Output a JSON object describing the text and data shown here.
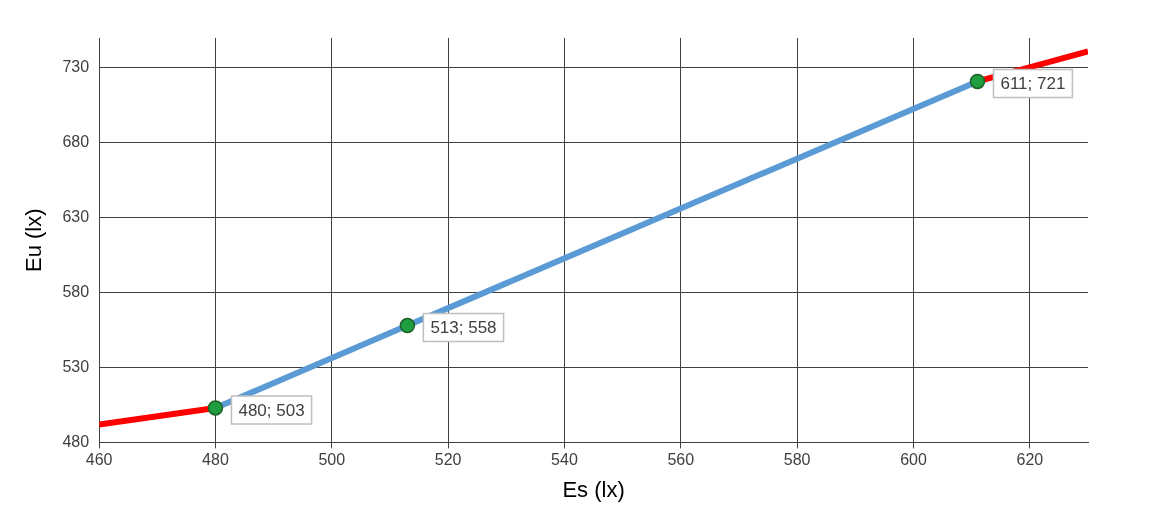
{
  "chart_data": {
    "type": "line",
    "xlabel": "Es (lx)",
    "ylabel": "Eu (lx)",
    "xlim": [
      460,
      630
    ],
    "xticks": [
      460,
      480,
      500,
      520,
      540,
      560,
      580,
      600,
      620
    ],
    "ylim": [
      480,
      750
    ],
    "yticks": [
      480,
      530,
      580,
      630,
      680,
      730
    ],
    "grid": true,
    "series": [
      {
        "type": "line",
        "color": "#5b9bd5",
        "marker": "circle",
        "x": [
          480,
          513,
          611
        ],
        "values": [
          503,
          558,
          721
        ],
        "value_labels": [
          "480; 503",
          "513; 558",
          "611; 721"
        ]
      },
      {
        "type": "line",
        "color": "#ff0000",
        "marker": "none",
        "x": [
          460,
          480,
          513,
          611,
          630
        ],
        "values": [
          492,
          503,
          null,
          721,
          741
        ]
      }
    ]
  }
}
